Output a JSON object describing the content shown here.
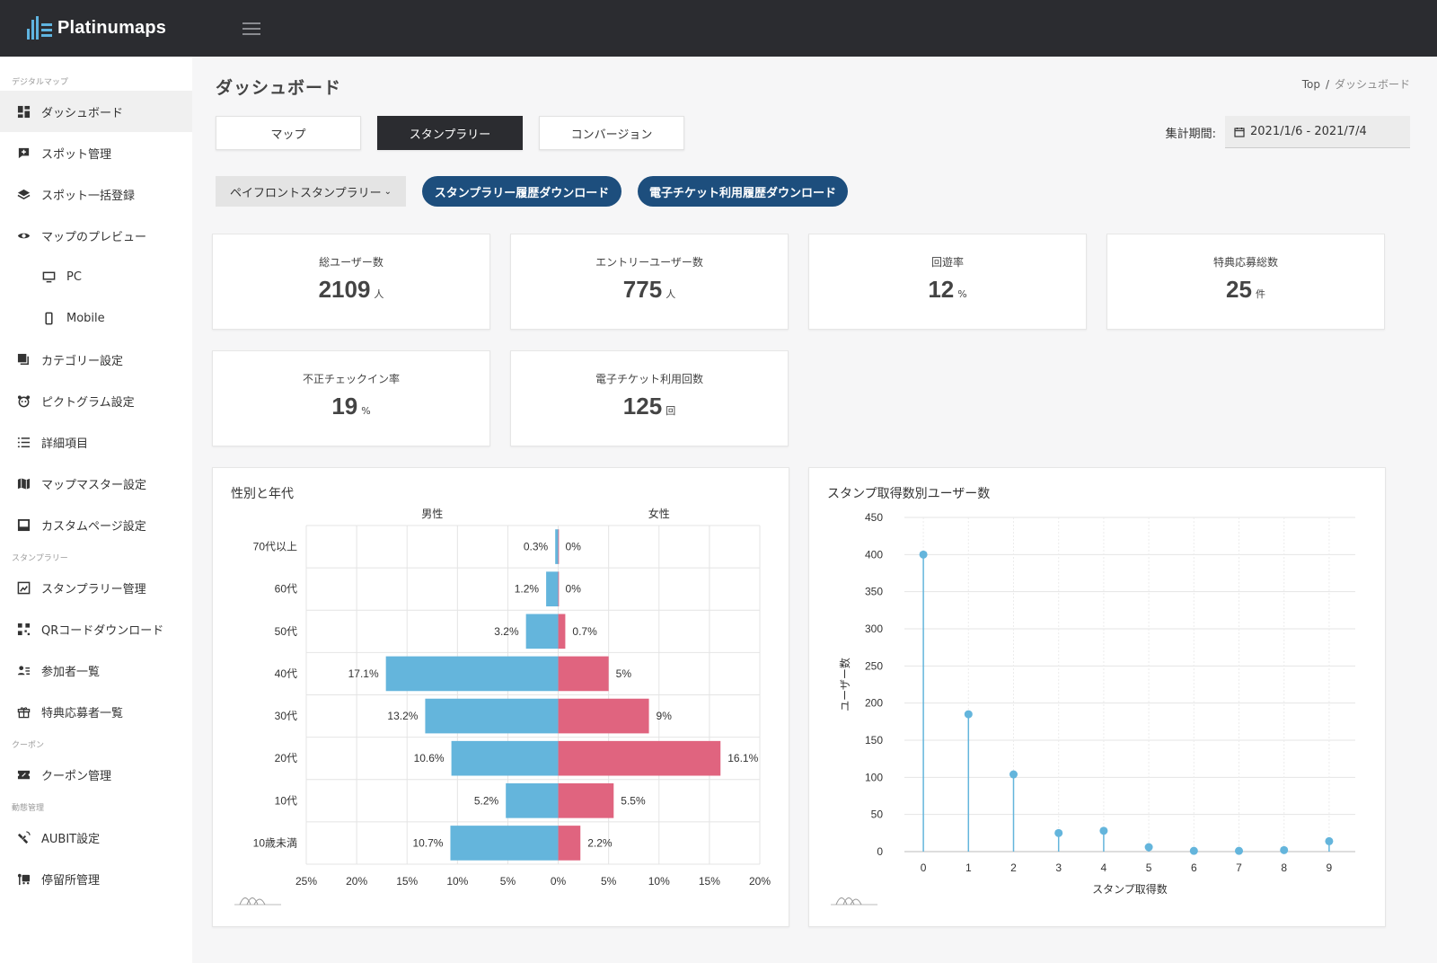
{
  "app": {
    "name": "Platinumaps"
  },
  "page": {
    "title": "ダッシュボード"
  },
  "breadcrumb": {
    "home": "Top",
    "separator": "/",
    "current": "ダッシュボード"
  },
  "sidebar": {
    "sections": [
      {
        "label": "デジタルマップ"
      },
      {
        "label": "スタンプラリー"
      },
      {
        "label": "クーポン"
      },
      {
        "label": "動態管理"
      }
    ],
    "items": [
      {
        "label": "ダッシュボード",
        "icon": "dashboard-icon"
      },
      {
        "label": "スポット管理",
        "icon": "add-location-icon"
      },
      {
        "label": "スポット一括登録",
        "icon": "layers-icon"
      },
      {
        "label": "マップのプレビュー",
        "icon": "eye-icon"
      },
      {
        "label": "PC",
        "icon": "monitor-icon"
      },
      {
        "label": "Mobile",
        "icon": "mobile-icon"
      },
      {
        "label": "カテゴリー設定",
        "icon": "copy-icon"
      },
      {
        "label": "ピクトグラム設定",
        "icon": "pictogram-icon"
      },
      {
        "label": "詳細項目",
        "icon": "list-icon"
      },
      {
        "label": "マップマスター設定",
        "icon": "map-icon"
      },
      {
        "label": "カスタムページ設定",
        "icon": "page-icon"
      },
      {
        "label": "スタンプラリー管理",
        "icon": "stamp-icon"
      },
      {
        "label": "QRコードダウンロード",
        "icon": "qr-icon"
      },
      {
        "label": "参加者一覧",
        "icon": "people-list-icon"
      },
      {
        "label": "特典応募者一覧",
        "icon": "gift-icon"
      },
      {
        "label": "クーポン管理",
        "icon": "coupon-icon"
      },
      {
        "label": "AUBIT設定",
        "icon": "satellite-icon"
      },
      {
        "label": "停留所管理",
        "icon": "bus-stop-icon"
      }
    ]
  },
  "tabs": [
    {
      "label": "マップ"
    },
    {
      "label": "スタンプラリー"
    },
    {
      "label": "コンバージョン"
    }
  ],
  "period": {
    "label": "集計期間:",
    "value": "2021/1/6 - 2021/7/4"
  },
  "actions": {
    "rally_select": "ペイフロントスタンプラリー",
    "download_history": "スタンプラリー履歴ダウンロード",
    "download_ticket": "電子チケット利用履歴ダウンロード"
  },
  "kpis": [
    {
      "label": "総ユーザー数",
      "value": "2109",
      "unit": "人"
    },
    {
      "label": "エントリーユーザー数",
      "value": "775",
      "unit": "人"
    },
    {
      "label": "回遊率",
      "value": "12",
      "unit": "%"
    },
    {
      "label": "特典応募総数",
      "value": "25",
      "unit": "件"
    },
    {
      "label": "不正チェックイン率",
      "value": "19",
      "unit": "%"
    },
    {
      "label": "電子チケット利用回数",
      "value": "125",
      "unit": "回"
    }
  ],
  "colors": {
    "male": "#64b5dc",
    "female": "#e0647f",
    "dark": "#2b2c30",
    "accent": "#1d4e7d"
  },
  "chart_data": [
    {
      "type": "bar",
      "orientation": "horizontal-diverging",
      "title": "性別と年代",
      "categories": [
        "70代以上",
        "60代",
        "50代",
        "40代",
        "30代",
        "20代",
        "10代",
        "10歳未満"
      ],
      "series": [
        {
          "name": "男性",
          "values": [
            0.3,
            1.2,
            3.2,
            17.1,
            13.2,
            10.6,
            5.2,
            10.7
          ],
          "labels": [
            "0.3%",
            "1.2%",
            "3.2%",
            "17.1%",
            "13.2%",
            "10.6%",
            "5.2%",
            "10.7%"
          ]
        },
        {
          "name": "女性",
          "values": [
            0,
            0,
            0.7,
            5,
            9,
            16.1,
            5.5,
            2.2
          ],
          "labels": [
            "0%",
            "0%",
            "0.7%",
            "5%",
            "9%",
            "16.1%",
            "5.5%",
            "2.2%"
          ]
        }
      ],
      "xlim": [
        -25,
        20
      ],
      "xticks": [
        "25%",
        "20%",
        "15%",
        "10%",
        "5%",
        "0%",
        "5%",
        "10%",
        "15%",
        "20%"
      ]
    },
    {
      "type": "scatter",
      "style": "lollipop",
      "title": "スタンプ取得数別ユーザー数",
      "xlabel": "スタンプ取得数",
      "ylabel": "ユーザー数",
      "x": [
        0,
        1,
        2,
        3,
        4,
        5,
        6,
        7,
        8,
        9
      ],
      "values": [
        400,
        185,
        104,
        25,
        28,
        6,
        1,
        1,
        2,
        14
      ],
      "ylim": [
        0,
        450
      ],
      "yticks": [
        0,
        50,
        100,
        150,
        200,
        250,
        300,
        350,
        400,
        450
      ]
    }
  ]
}
